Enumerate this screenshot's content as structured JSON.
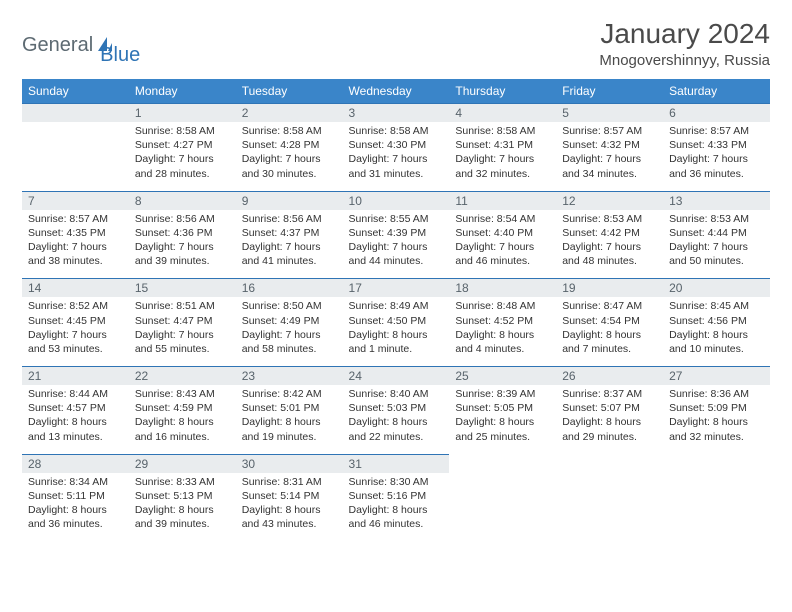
{
  "brand": {
    "general": "General",
    "blue": "Blue"
  },
  "title": "January 2024",
  "location": "Mnogovershinnyy, Russia",
  "colors": {
    "header_bg": "#3a85c9",
    "header_text": "#ffffff",
    "rule": "#2f74b5",
    "daynum_bg": "#e9ecee",
    "daynum_text": "#58636b",
    "body_text": "#333333",
    "page_bg": "#ffffff",
    "logo_gray": "#5d6a72",
    "logo_blue": "#2f74b5"
  },
  "day_headers": [
    "Sunday",
    "Monday",
    "Tuesday",
    "Wednesday",
    "Thursday",
    "Friday",
    "Saturday"
  ],
  "weeks": [
    [
      {
        "n": "",
        "sr": "",
        "ss": "",
        "d1": "",
        "d2": ""
      },
      {
        "n": "1",
        "sr": "Sunrise: 8:58 AM",
        "ss": "Sunset: 4:27 PM",
        "d1": "Daylight: 7 hours",
        "d2": "and 28 minutes."
      },
      {
        "n": "2",
        "sr": "Sunrise: 8:58 AM",
        "ss": "Sunset: 4:28 PM",
        "d1": "Daylight: 7 hours",
        "d2": "and 30 minutes."
      },
      {
        "n": "3",
        "sr": "Sunrise: 8:58 AM",
        "ss": "Sunset: 4:30 PM",
        "d1": "Daylight: 7 hours",
        "d2": "and 31 minutes."
      },
      {
        "n": "4",
        "sr": "Sunrise: 8:58 AM",
        "ss": "Sunset: 4:31 PM",
        "d1": "Daylight: 7 hours",
        "d2": "and 32 minutes."
      },
      {
        "n": "5",
        "sr": "Sunrise: 8:57 AM",
        "ss": "Sunset: 4:32 PM",
        "d1": "Daylight: 7 hours",
        "d2": "and 34 minutes."
      },
      {
        "n": "6",
        "sr": "Sunrise: 8:57 AM",
        "ss": "Sunset: 4:33 PM",
        "d1": "Daylight: 7 hours",
        "d2": "and 36 minutes."
      }
    ],
    [
      {
        "n": "7",
        "sr": "Sunrise: 8:57 AM",
        "ss": "Sunset: 4:35 PM",
        "d1": "Daylight: 7 hours",
        "d2": "and 38 minutes."
      },
      {
        "n": "8",
        "sr": "Sunrise: 8:56 AM",
        "ss": "Sunset: 4:36 PM",
        "d1": "Daylight: 7 hours",
        "d2": "and 39 minutes."
      },
      {
        "n": "9",
        "sr": "Sunrise: 8:56 AM",
        "ss": "Sunset: 4:37 PM",
        "d1": "Daylight: 7 hours",
        "d2": "and 41 minutes."
      },
      {
        "n": "10",
        "sr": "Sunrise: 8:55 AM",
        "ss": "Sunset: 4:39 PM",
        "d1": "Daylight: 7 hours",
        "d2": "and 44 minutes."
      },
      {
        "n": "11",
        "sr": "Sunrise: 8:54 AM",
        "ss": "Sunset: 4:40 PM",
        "d1": "Daylight: 7 hours",
        "d2": "and 46 minutes."
      },
      {
        "n": "12",
        "sr": "Sunrise: 8:53 AM",
        "ss": "Sunset: 4:42 PM",
        "d1": "Daylight: 7 hours",
        "d2": "and 48 minutes."
      },
      {
        "n": "13",
        "sr": "Sunrise: 8:53 AM",
        "ss": "Sunset: 4:44 PM",
        "d1": "Daylight: 7 hours",
        "d2": "and 50 minutes."
      }
    ],
    [
      {
        "n": "14",
        "sr": "Sunrise: 8:52 AM",
        "ss": "Sunset: 4:45 PM",
        "d1": "Daylight: 7 hours",
        "d2": "and 53 minutes."
      },
      {
        "n": "15",
        "sr": "Sunrise: 8:51 AM",
        "ss": "Sunset: 4:47 PM",
        "d1": "Daylight: 7 hours",
        "d2": "and 55 minutes."
      },
      {
        "n": "16",
        "sr": "Sunrise: 8:50 AM",
        "ss": "Sunset: 4:49 PM",
        "d1": "Daylight: 7 hours",
        "d2": "and 58 minutes."
      },
      {
        "n": "17",
        "sr": "Sunrise: 8:49 AM",
        "ss": "Sunset: 4:50 PM",
        "d1": "Daylight: 8 hours",
        "d2": "and 1 minute."
      },
      {
        "n": "18",
        "sr": "Sunrise: 8:48 AM",
        "ss": "Sunset: 4:52 PM",
        "d1": "Daylight: 8 hours",
        "d2": "and 4 minutes."
      },
      {
        "n": "19",
        "sr": "Sunrise: 8:47 AM",
        "ss": "Sunset: 4:54 PM",
        "d1": "Daylight: 8 hours",
        "d2": "and 7 minutes."
      },
      {
        "n": "20",
        "sr": "Sunrise: 8:45 AM",
        "ss": "Sunset: 4:56 PM",
        "d1": "Daylight: 8 hours",
        "d2": "and 10 minutes."
      }
    ],
    [
      {
        "n": "21",
        "sr": "Sunrise: 8:44 AM",
        "ss": "Sunset: 4:57 PM",
        "d1": "Daylight: 8 hours",
        "d2": "and 13 minutes."
      },
      {
        "n": "22",
        "sr": "Sunrise: 8:43 AM",
        "ss": "Sunset: 4:59 PM",
        "d1": "Daylight: 8 hours",
        "d2": "and 16 minutes."
      },
      {
        "n": "23",
        "sr": "Sunrise: 8:42 AM",
        "ss": "Sunset: 5:01 PM",
        "d1": "Daylight: 8 hours",
        "d2": "and 19 minutes."
      },
      {
        "n": "24",
        "sr": "Sunrise: 8:40 AM",
        "ss": "Sunset: 5:03 PM",
        "d1": "Daylight: 8 hours",
        "d2": "and 22 minutes."
      },
      {
        "n": "25",
        "sr": "Sunrise: 8:39 AM",
        "ss": "Sunset: 5:05 PM",
        "d1": "Daylight: 8 hours",
        "d2": "and 25 minutes."
      },
      {
        "n": "26",
        "sr": "Sunrise: 8:37 AM",
        "ss": "Sunset: 5:07 PM",
        "d1": "Daylight: 8 hours",
        "d2": "and 29 minutes."
      },
      {
        "n": "27",
        "sr": "Sunrise: 8:36 AM",
        "ss": "Sunset: 5:09 PM",
        "d1": "Daylight: 8 hours",
        "d2": "and 32 minutes."
      }
    ],
    [
      {
        "n": "28",
        "sr": "Sunrise: 8:34 AM",
        "ss": "Sunset: 5:11 PM",
        "d1": "Daylight: 8 hours",
        "d2": "and 36 minutes."
      },
      {
        "n": "29",
        "sr": "Sunrise: 8:33 AM",
        "ss": "Sunset: 5:13 PM",
        "d1": "Daylight: 8 hours",
        "d2": "and 39 minutes."
      },
      {
        "n": "30",
        "sr": "Sunrise: 8:31 AM",
        "ss": "Sunset: 5:14 PM",
        "d1": "Daylight: 8 hours",
        "d2": "and 43 minutes."
      },
      {
        "n": "31",
        "sr": "Sunrise: 8:30 AM",
        "ss": "Sunset: 5:16 PM",
        "d1": "Daylight: 8 hours",
        "d2": "and 46 minutes."
      },
      {
        "n": "",
        "sr": "",
        "ss": "",
        "d1": "",
        "d2": ""
      },
      {
        "n": "",
        "sr": "",
        "ss": "",
        "d1": "",
        "d2": ""
      },
      {
        "n": "",
        "sr": "",
        "ss": "",
        "d1": "",
        "d2": ""
      }
    ]
  ]
}
